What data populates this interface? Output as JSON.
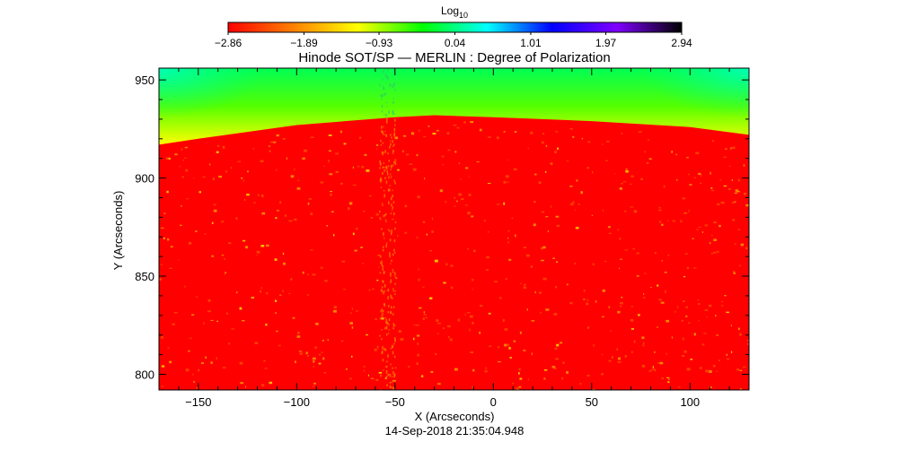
{
  "chart_data": {
    "type": "heatmap",
    "title": "Hinode SOT/SP — MERLIN : Degree of Polarization",
    "xlabel": "X (Arcseconds)",
    "ylabel": "Y (Arcseconds)",
    "timestamp": "14-Sep-2018 21:35:04.948",
    "xlim": [
      -170,
      130
    ],
    "ylim": [
      792,
      956
    ],
    "xticks": [
      {
        "value": -150,
        "label": "−150"
      },
      {
        "value": -100,
        "label": "−100"
      },
      {
        "value": -50,
        "label": "−50"
      },
      {
        "value": 0,
        "label": "0"
      },
      {
        "value": 50,
        "label": "50"
      },
      {
        "value": 100,
        "label": "100"
      }
    ],
    "yticks": [
      {
        "value": 800,
        "label": "800"
      },
      {
        "value": 850,
        "label": "850"
      },
      {
        "value": 900,
        "label": "900"
      },
      {
        "value": 950,
        "label": "950"
      }
    ],
    "colorbar": {
      "title_base": "Log",
      "title_sub": "10",
      "range": [
        -2.86,
        2.94
      ],
      "ticks": [
        {
          "value": -2.86,
          "label": "−2.86"
        },
        {
          "value": -1.89,
          "label": "−1.89"
        },
        {
          "value": -0.93,
          "label": "−0.93"
        },
        {
          "value": 0.04,
          "label": "0.04"
        },
        {
          "value": 1.01,
          "label": "1.01"
        },
        {
          "value": 1.97,
          "label": "1.97"
        },
        {
          "value": 2.94,
          "label": "2.94"
        }
      ],
      "colors": [
        "#ff0000",
        "#ff8000",
        "#ffff00",
        "#00ff00",
        "#00ffff",
        "#0000ff",
        "#8000ff",
        "#000000"
      ]
    },
    "limb_profile": {
      "x": [
        -170,
        -150,
        -100,
        -50,
        -30,
        0,
        50,
        100,
        130
      ],
      "y": [
        917,
        920,
        927,
        931,
        932,
        931,
        929,
        926,
        922
      ]
    },
    "off_disk_levels": {
      "limb_edge": -1.2,
      "top_edge": -0.1,
      "top_corners": 0.3
    },
    "on_disk_level": -2.86
  }
}
